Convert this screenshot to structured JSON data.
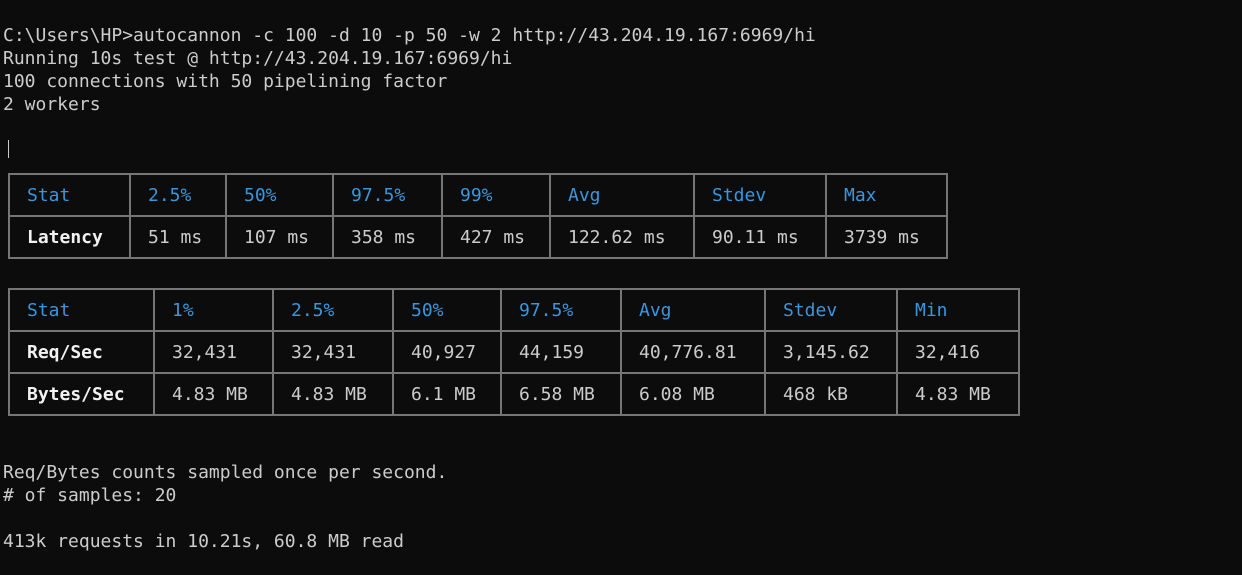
{
  "terminal": {
    "command_line": "C:\\Users\\HP>autocannon -c 100 -d 10 -p 50 -w 2 http://43.204.19.167:6969/hi",
    "running_line": "Running 10s test @ http://43.204.19.167:6969/hi",
    "connections_line": "100 connections with 50 pipelining factor",
    "workers_line": "2 workers"
  },
  "latency_table": {
    "headers": [
      "Stat",
      "2.5%",
      "50%",
      "97.5%",
      "99%",
      "Avg",
      "Stdev",
      "Max"
    ],
    "rows": [
      [
        "Latency",
        "51 ms",
        "107 ms",
        "358 ms",
        "427 ms",
        "122.62 ms",
        "90.11 ms",
        "3739 ms"
      ]
    ]
  },
  "throughput_table": {
    "headers": [
      "Stat",
      "1%",
      "2.5%",
      "50%",
      "97.5%",
      "Avg",
      "Stdev",
      "Min"
    ],
    "rows": [
      [
        "Req/Sec",
        "32,431",
        "32,431",
        "40,927",
        "44,159",
        "40,776.81",
        "3,145.62",
        "32,416"
      ],
      [
        "Bytes/Sec",
        "4.83 MB",
        "4.83 MB",
        "6.1 MB",
        "6.58 MB",
        "6.08 MB",
        "468 kB",
        "4.83 MB"
      ]
    ]
  },
  "footer": {
    "sampled_line": "Req/Bytes counts sampled once per second.",
    "samples_line": "# of samples: 20",
    "summary_line": "413k requests in 10.21s, 60.8 MB read"
  },
  "colors": {
    "background": "#0c0c0c",
    "text": "#cccccc",
    "header_blue": "#3a96dd",
    "border": "#767676"
  }
}
